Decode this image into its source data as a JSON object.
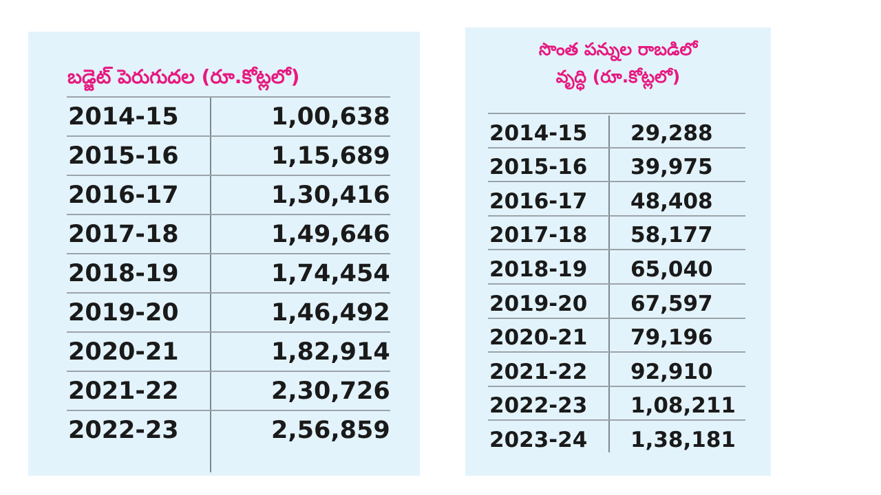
{
  "chart_data": [
    {
      "type": "table",
      "title": "బడ్జెట్ పెరుగుదల (రూ.కోట్లలో)",
      "rows": [
        {
          "year": "2014-15",
          "value": "1,00,638"
        },
        {
          "year": "2015-16",
          "value": "1,15,689"
        },
        {
          "year": "2016-17",
          "value": "1,30,416"
        },
        {
          "year": "2017-18",
          "value": "1,49,646"
        },
        {
          "year": "2018-19",
          "value": "1,74,454"
        },
        {
          "year": "2019-20",
          "value": "1,46,492"
        },
        {
          "year": "2020-21",
          "value": "1,82,914"
        },
        {
          "year": "2021-22",
          "value": "2,30,726"
        },
        {
          "year": "2022-23",
          "value": "2,56,859"
        }
      ]
    },
    {
      "type": "table",
      "title": "సొంత పన్నుల రాబడిలో వృద్ధి (రూ.కోట్లలో)",
      "title_lines": [
        "సొంత పన్నుల రాబడిలో",
        "వృద్ధి (రూ.కోట్లలో)"
      ],
      "rows": [
        {
          "year": "2014-15",
          "value": "29,288"
        },
        {
          "year": "2015-16",
          "value": "39,975"
        },
        {
          "year": "2016-17",
          "value": "48,408"
        },
        {
          "year": "2017-18",
          "value": "58,177"
        },
        {
          "year": "2018-19",
          "value": "65,040"
        },
        {
          "year": "2019-20",
          "value": "67,597"
        },
        {
          "year": "2020-21",
          "value": "79,196"
        },
        {
          "year": "2021-22",
          "value": "92,910"
        },
        {
          "year": "2022-23",
          "value": "1,08,211"
        },
        {
          "year": "2023-24",
          "value": "1,38,181"
        }
      ]
    }
  ],
  "colors": {
    "title": "#e6197f",
    "panel_background": "#e3f3fb",
    "text": "#1a1a1a",
    "rule": "#9aa3a8"
  }
}
